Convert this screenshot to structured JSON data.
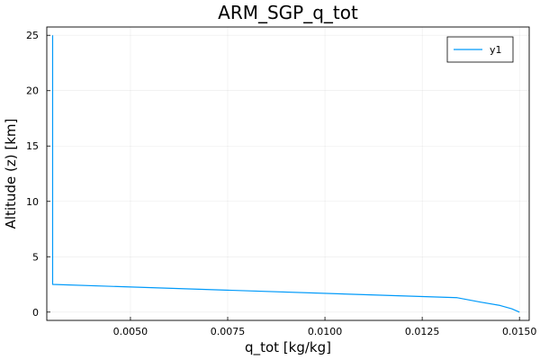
{
  "chart_data": {
    "type": "line",
    "title": "ARM_SGP_q_tot",
    "xlabel": "q_tot [kg/kg]",
    "ylabel": "Altitude (z) [km]",
    "xlim": [
      0.00285,
      0.01525
    ],
    "ylim": [
      -0.75,
      25.75
    ],
    "xticks": [
      0.005,
      0.0075,
      0.01,
      0.0125,
      0.015
    ],
    "xtick_labels": [
      "0.0050",
      "0.0075",
      "0.0100",
      "0.0125",
      "0.0150"
    ],
    "yticks": [
      0,
      5,
      10,
      15,
      20,
      25
    ],
    "ytick_labels": [
      "0",
      "5",
      "10",
      "15",
      "20",
      "25"
    ],
    "grid": true,
    "legend_position": "top-right",
    "series": [
      {
        "name": "y1",
        "color": "#009AFA",
        "x": [
          0.003,
          0.003,
          0.003,
          0.0134,
          0.014,
          0.0145,
          0.0148,
          0.015
        ],
        "y": [
          25.0,
          10.0,
          2.5,
          1.3,
          0.9,
          0.6,
          0.3,
          0.0
        ]
      }
    ]
  }
}
